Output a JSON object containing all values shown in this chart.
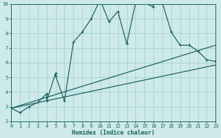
{
  "xlabel": "Humidex (Indice chaleur)",
  "xlim": [
    0,
    23
  ],
  "ylim": [
    2,
    10
  ],
  "yticks": [
    2,
    3,
    4,
    5,
    6,
    7,
    8,
    9,
    10
  ],
  "xticks": [
    0,
    1,
    2,
    3,
    4,
    5,
    6,
    7,
    8,
    9,
    10,
    11,
    12,
    13,
    14,
    15,
    16,
    17,
    18,
    19,
    20,
    21,
    22,
    23
  ],
  "bg_color": "#cde9e9",
  "grid_color": "#aad4d4",
  "line_color": "#1a6060",
  "line1_x": [
    0,
    1,
    2,
    3,
    4,
    4,
    5,
    5,
    6,
    7,
    8,
    9,
    10,
    11,
    12,
    13,
    14,
    15,
    16,
    16,
    17,
    18,
    19,
    20,
    21,
    22,
    23
  ],
  "line1_y": [
    2.9,
    2.6,
    3.0,
    3.3,
    3.9,
    3.4,
    5.3,
    5.1,
    3.4,
    7.4,
    8.1,
    9.0,
    10.3,
    8.8,
    9.5,
    7.3,
    10.1,
    10.1,
    9.8,
    10.0,
    10.1,
    8.1,
    7.2,
    7.2,
    6.8,
    6.2,
    6.1
  ],
  "line2_x": [
    0,
    23
  ],
  "line2_y": [
    2.9,
    7.2
  ],
  "line3_x": [
    0,
    23
  ],
  "line3_y": [
    2.9,
    5.85
  ]
}
